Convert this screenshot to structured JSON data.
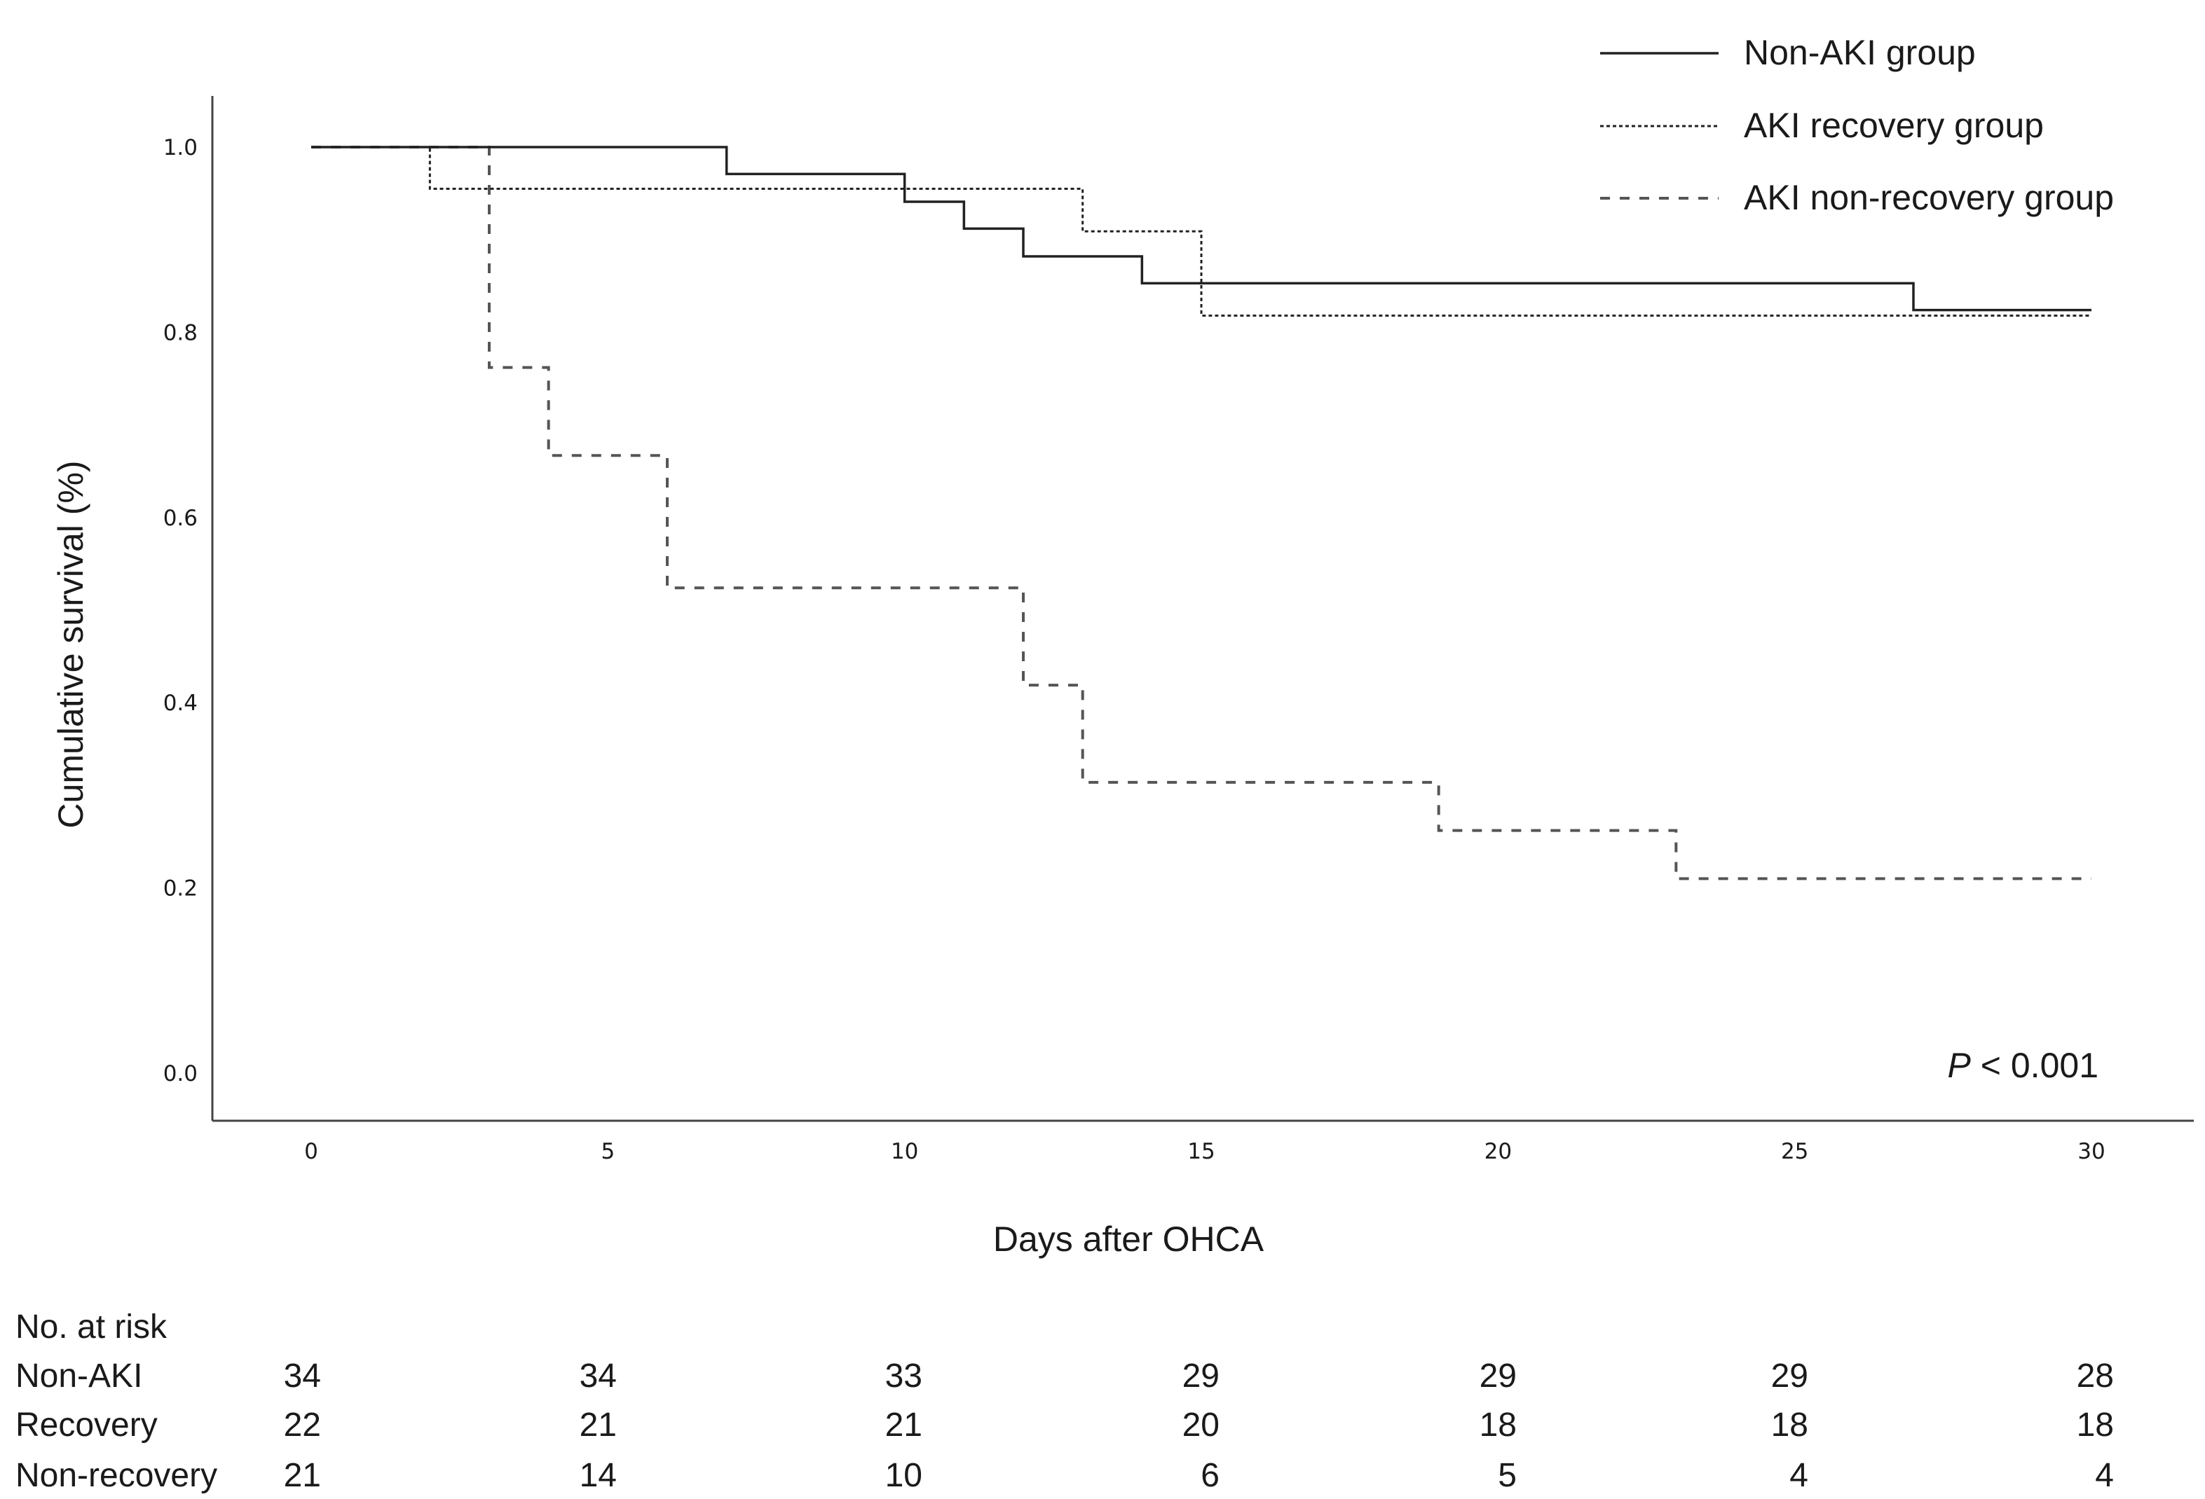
{
  "chart_data": {
    "type": "line",
    "xlabel": "Days after OHCA",
    "ylabel": "Cumulative survival (%)",
    "xlim": [
      0,
      30
    ],
    "ylim": [
      0.0,
      1.0
    ],
    "x_ticks": [
      "0",
      "5",
      "10",
      "15",
      "20",
      "25",
      "30"
    ],
    "y_ticks": [
      "0.0",
      "0.2",
      "0.4",
      "0.6",
      "0.8",
      "1.0"
    ],
    "grid": false,
    "legend_position": "top-right",
    "annotation": {
      "italic": "P",
      "rest": " < 0.001"
    },
    "series": [
      {
        "name": "Non-AKI group",
        "style": "solid",
        "steps": [
          [
            0,
            1.0
          ],
          [
            7,
            0.971
          ],
          [
            10,
            0.941
          ],
          [
            11,
            0.912
          ],
          [
            12,
            0.882
          ],
          [
            14,
            0.853
          ],
          [
            27,
            0.824
          ]
        ],
        "end": 30
      },
      {
        "name": "AKI recovery group",
        "style": "dotted",
        "steps": [
          [
            0,
            1.0
          ],
          [
            2,
            0.955
          ],
          [
            13,
            0.909
          ],
          [
            15,
            0.818
          ]
        ],
        "end": 30
      },
      {
        "name": "AKI non-recovery group",
        "style": "dashed",
        "steps": [
          [
            0,
            1.0
          ],
          [
            3,
            0.762
          ],
          [
            4,
            0.667
          ],
          [
            6,
            0.524
          ],
          [
            12,
            0.419
          ],
          [
            13,
            0.314
          ],
          [
            19,
            0.262
          ],
          [
            23,
            0.21
          ]
        ],
        "end": 30
      }
    ],
    "risk_table": {
      "title": "No. at risk",
      "rows": [
        {
          "label": "Non-AKI",
          "values": [
            "34",
            "34",
            "33",
            "29",
            "29",
            "29",
            "28"
          ]
        },
        {
          "label": "Recovery",
          "values": [
            "22",
            "21",
            "21",
            "20",
            "18",
            "18",
            "18"
          ]
        },
        {
          "label": "Non-recovery",
          "values": [
            "21",
            "14",
            "10",
            "6",
            "5",
            "4",
            "4"
          ]
        }
      ]
    }
  }
}
